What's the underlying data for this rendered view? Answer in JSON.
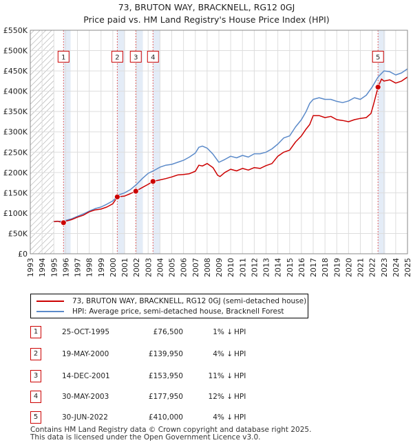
{
  "chart_data": {
    "type": "line",
    "title": "73, BRUTON WAY, BRACKNELL, RG12 0GJ",
    "subtitle": "Price paid vs. HM Land Registry's House Price Index (HPI)",
    "xlabel": "",
    "ylabel": "",
    "xlim": [
      1993,
      2025
    ],
    "ylim": [
      0,
      550000
    ],
    "grid": true,
    "x_ticks": [
      "1993",
      "1994",
      "1995",
      "1996",
      "1997",
      "1998",
      "1999",
      "2000",
      "2001",
      "2002",
      "2003",
      "2004",
      "2005",
      "2006",
      "2007",
      "2008",
      "2009",
      "2010",
      "2011",
      "2012",
      "2013",
      "2014",
      "2015",
      "2016",
      "2017",
      "2018",
      "2019",
      "2020",
      "2021",
      "2022",
      "2023",
      "2024",
      "2025"
    ],
    "y_ticks": [
      {
        "value": 0,
        "label": "£0"
      },
      {
        "value": 50000,
        "label": "£50K"
      },
      {
        "value": 100000,
        "label": "£100K"
      },
      {
        "value": 150000,
        "label": "£150K"
      },
      {
        "value": 200000,
        "label": "£200K"
      },
      {
        "value": 250000,
        "label": "£250K"
      },
      {
        "value": 300000,
        "label": "£300K"
      },
      {
        "value": 350000,
        "label": "£350K"
      },
      {
        "value": 400000,
        "label": "£400K"
      },
      {
        "value": 450000,
        "label": "£450K"
      },
      {
        "value": 500000,
        "label": "£500K"
      },
      {
        "value": 550000,
        "label": "£550K"
      }
    ],
    "hatched_ranges": [
      [
        1993,
        1995.0
      ],
      [
        2025.0,
        2025.5
      ]
    ],
    "series": [
      {
        "name": "73, BRUTON WAY, BRACKNELL, RG12 0GJ (semi-detached house)",
        "color": "#cc0000",
        "x": [
          1995.0,
          1995.3,
          1995.8,
          1996.0,
          1996.5,
          1997.0,
          1997.5,
          1998.0,
          1998.5,
          1999.0,
          1999.5,
          2000.0,
          2000.4,
          2001.0,
          2001.5,
          2001.95,
          2002.5,
          2003.0,
          2003.4,
          2003.9,
          2004.5,
          2005.0,
          2005.5,
          2006.0,
          2006.5,
          2007.0,
          2007.3,
          2007.6,
          2008.0,
          2008.5,
          2008.9,
          2009.1,
          2009.5,
          2010.0,
          2010.5,
          2011.0,
          2011.5,
          2012.0,
          2012.5,
          2013.0,
          2013.5,
          2014.0,
          2014.5,
          2015.0,
          2015.5,
          2016.0,
          2016.4,
          2016.7,
          2017.0,
          2017.5,
          2018.0,
          2018.5,
          2019.0,
          2019.5,
          2020.0,
          2020.5,
          2021.0,
          2021.5,
          2021.9,
          2022.1,
          2022.5,
          2022.8,
          2023.0,
          2023.5,
          2024.0,
          2024.5,
          2025.0
        ],
        "values": [
          79000,
          80000,
          76500,
          80000,
          84000,
          90000,
          95000,
          103000,
          108000,
          110000,
          115000,
          123000,
          139950,
          142000,
          148000,
          153950,
          163000,
          171000,
          177950,
          181000,
          185000,
          189000,
          194000,
          195000,
          197000,
          203000,
          218000,
          216000,
          222000,
          212000,
          193000,
          190000,
          200000,
          208000,
          204000,
          210000,
          206000,
          212000,
          210000,
          217000,
          222000,
          240000,
          250000,
          255000,
          275000,
          290000,
          307000,
          318000,
          340000,
          340000,
          335000,
          338000,
          330000,
          328000,
          325000,
          330000,
          333000,
          335000,
          345000,
          365000,
          410000,
          430000,
          425000,
          428000,
          420000,
          425000,
          435000
        ]
      },
      {
        "name": "HPI: Average price, semi-detached house, Bracknell Forest",
        "color": "#5b8ac9",
        "x": [
          1995.0,
          1995.5,
          1996.0,
          1996.5,
          1997.0,
          1997.5,
          1998.0,
          1998.5,
          1999.0,
          1999.5,
          2000.0,
          2000.5,
          2001.0,
          2001.5,
          2002.0,
          2002.5,
          2003.0,
          2003.5,
          2004.0,
          2004.5,
          2005.0,
          2005.5,
          2006.0,
          2006.5,
          2007.0,
          2007.3,
          2007.6,
          2008.0,
          2008.5,
          2009.0,
          2009.5,
          2010.0,
          2010.5,
          2011.0,
          2011.5,
          2012.0,
          2012.5,
          2013.0,
          2013.5,
          2014.0,
          2014.5,
          2015.0,
          2015.5,
          2016.0,
          2016.4,
          2016.7,
          2017.0,
          2017.5,
          2018.0,
          2018.5,
          2019.0,
          2019.5,
          2020.0,
          2020.5,
          2021.0,
          2021.5,
          2022.0,
          2022.5,
          2023.0,
          2023.5,
          2024.0,
          2024.5,
          2025.0
        ],
        "values": [
          79000,
          80000,
          82000,
          86000,
          92000,
          98000,
          105000,
          111000,
          115000,
          122000,
          130000,
          145000,
          150000,
          158000,
          170000,
          185000,
          198000,
          205000,
          213000,
          218000,
          220000,
          225000,
          230000,
          238000,
          248000,
          262000,
          265000,
          260000,
          245000,
          225000,
          232000,
          240000,
          236000,
          242000,
          238000,
          246000,
          246000,
          250000,
          258000,
          270000,
          285000,
          290000,
          312000,
          330000,
          350000,
          370000,
          380000,
          384000,
          380000,
          380000,
          375000,
          372000,
          376000,
          384000,
          380000,
          390000,
          410000,
          435000,
          450000,
          448000,
          440000,
          445000,
          455000
        ]
      }
    ],
    "sales": [
      {
        "marker": "1",
        "year": 1995.82,
        "value": 76500
      },
      {
        "marker": "2",
        "year": 2000.38,
        "value": 139950
      },
      {
        "marker": "3",
        "year": 2001.95,
        "value": 153950
      },
      {
        "marker": "4",
        "year": 2003.41,
        "value": 177950
      },
      {
        "marker": "5",
        "year": 2022.5,
        "value": 410000
      }
    ],
    "marker_label_value": 485000
  },
  "title_line1": "73, BRUTON WAY, BRACKNELL, RG12 0GJ",
  "title_line2": "Price paid vs. HM Land Registry's House Price Index (HPI)",
  "legend": {
    "property": "73, BRUTON WAY, BRACKNELL, RG12 0GJ (semi-detached house)",
    "hpi": "HPI: Average price, semi-detached house, Bracknell Forest",
    "property_color": "#cc0000",
    "hpi_color": "#5b8ac9"
  },
  "table": [
    {
      "marker": "1",
      "date": "25-OCT-1995",
      "price": "£76,500",
      "delta": "1% ↓",
      "hpi": "HPI"
    },
    {
      "marker": "2",
      "date": "19-MAY-2000",
      "price": "£139,950",
      "delta": "4% ↓",
      "hpi": "HPI"
    },
    {
      "marker": "3",
      "date": "14-DEC-2001",
      "price": "£153,950",
      "delta": "11% ↓",
      "hpi": "HPI"
    },
    {
      "marker": "4",
      "date": "30-MAY-2003",
      "price": "£177,950",
      "delta": "12% ↓",
      "hpi": "HPI"
    },
    {
      "marker": "5",
      "date": "30-JUN-2022",
      "price": "£410,000",
      "delta": "4% ↓",
      "hpi": "HPI"
    }
  ],
  "footer": {
    "line1": "Contains HM Land Registry data © Crown copyright and database right 2025.",
    "line2": "This data is licensed under the Open Government Licence v3.0."
  }
}
